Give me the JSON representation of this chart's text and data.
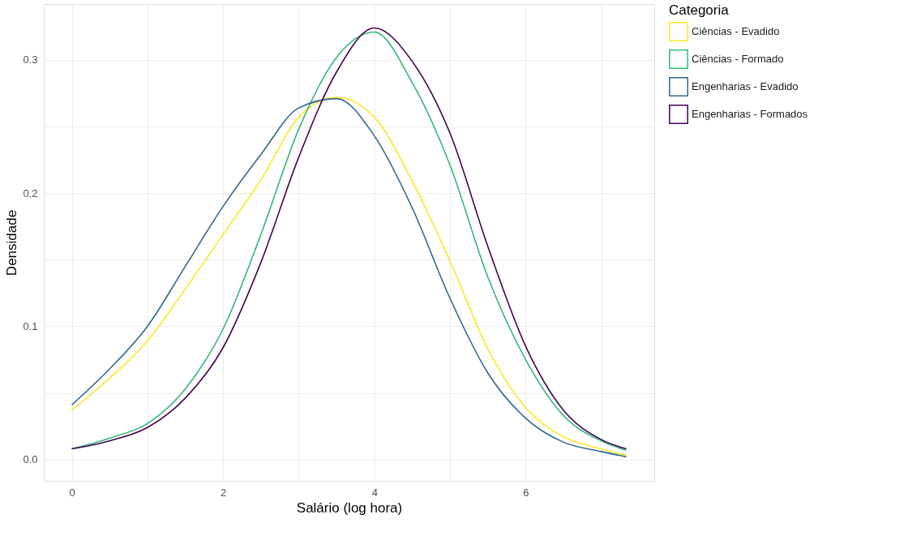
{
  "chart_data": {
    "type": "line",
    "xlabel": "Salário (log hora)",
    "ylabel": "Densidade",
    "legend_title": "Categoria",
    "legend": "right",
    "grid": true,
    "line_style": "solid",
    "marker": "none",
    "x": [
      0,
      0.5,
      1,
      1.5,
      2,
      2.5,
      3,
      3.5,
      4,
      4.5,
      5,
      5.5,
      6,
      6.5,
      7,
      7.33
    ],
    "xlim": [
      -0.37,
      7.7
    ],
    "ylim": [
      -0.016,
      0.342
    ],
    "xticks": [
      0,
      {
        "value": 1,
        "label": null
      },
      2,
      {
        "value": 3,
        "label": null
      },
      4,
      {
        "value": 5,
        "label": null
      },
      6,
      {
        "value": 7,
        "label": null
      }
    ],
    "yticks": [
      {
        "value": 0,
        "label": "0.0"
      },
      {
        "value": 0.05,
        "label": null
      },
      0.1,
      {
        "value": 0.15,
        "label": null
      },
      0.2,
      {
        "value": 0.25,
        "label": null
      },
      0.3
    ],
    "series": [
      {
        "name": "Ciências - Evadido",
        "color": "#fde725",
        "values": [
          0.037,
          0.061,
          0.089,
          0.128,
          0.169,
          0.21,
          0.257,
          0.272,
          0.257,
          0.209,
          0.149,
          0.083,
          0.039,
          0.017,
          0.008,
          0.003
        ]
      },
      {
        "name": "Ciências - Formado",
        "color": "#35b779",
        "values": [
          0.008,
          0.016,
          0.027,
          0.053,
          0.098,
          0.169,
          0.248,
          0.302,
          0.321,
          0.283,
          0.221,
          0.137,
          0.075,
          0.033,
          0.014,
          0.007
        ]
      },
      {
        "name": "Engenharias - Evadido",
        "color": "#31688e",
        "values": [
          0.041,
          0.068,
          0.1,
          0.145,
          0.19,
          0.229,
          0.264,
          0.271,
          0.243,
          0.189,
          0.121,
          0.065,
          0.031,
          0.013,
          0.006,
          0.002
        ]
      },
      {
        "name": "Engenharias - Formados",
        "color": "#440154",
        "values": [
          0.008,
          0.014,
          0.024,
          0.046,
          0.084,
          0.148,
          0.227,
          0.291,
          0.324,
          0.299,
          0.245,
          0.16,
          0.085,
          0.037,
          0.015,
          0.008
        ]
      }
    ]
  }
}
